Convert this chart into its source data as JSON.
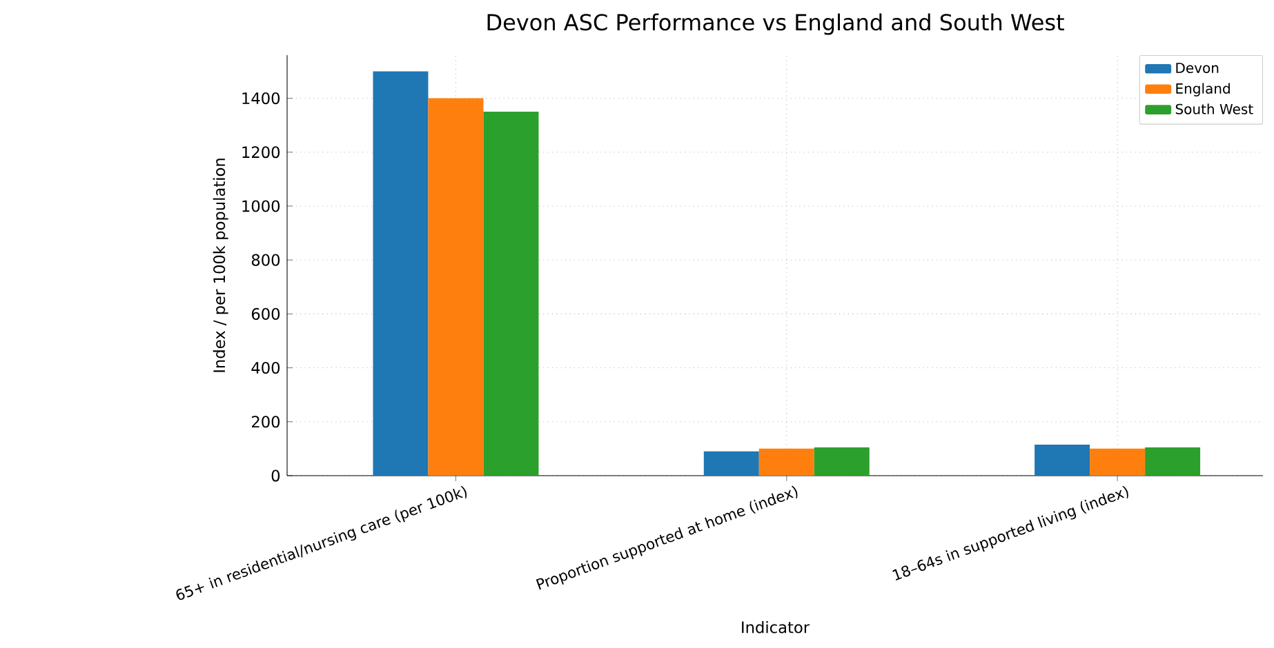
{
  "chart_data": {
    "type": "bar",
    "title": "Devon ASC Performance vs England and South West",
    "xlabel": "Indicator",
    "ylabel": "Index / per 100k population",
    "categories": [
      "65+ in residential/nursing care (per 100k)",
      "Proportion supported at home (index)",
      "18–64s in supported living (index)"
    ],
    "series": [
      {
        "name": "Devon",
        "color": "#1f77b4",
        "values": [
          1500,
          90,
          115
        ]
      },
      {
        "name": "England",
        "color": "#ff7f0e",
        "values": [
          1400,
          100,
          100
        ]
      },
      {
        "name": "South West",
        "color": "#2ca02c",
        "values": [
          1350,
          105,
          105
        ]
      }
    ],
    "ylim": [
      0,
      1560
    ],
    "yticks": [
      0,
      200,
      400,
      600,
      800,
      1000,
      1200,
      1400
    ],
    "grid": true,
    "legend": "top right"
  }
}
